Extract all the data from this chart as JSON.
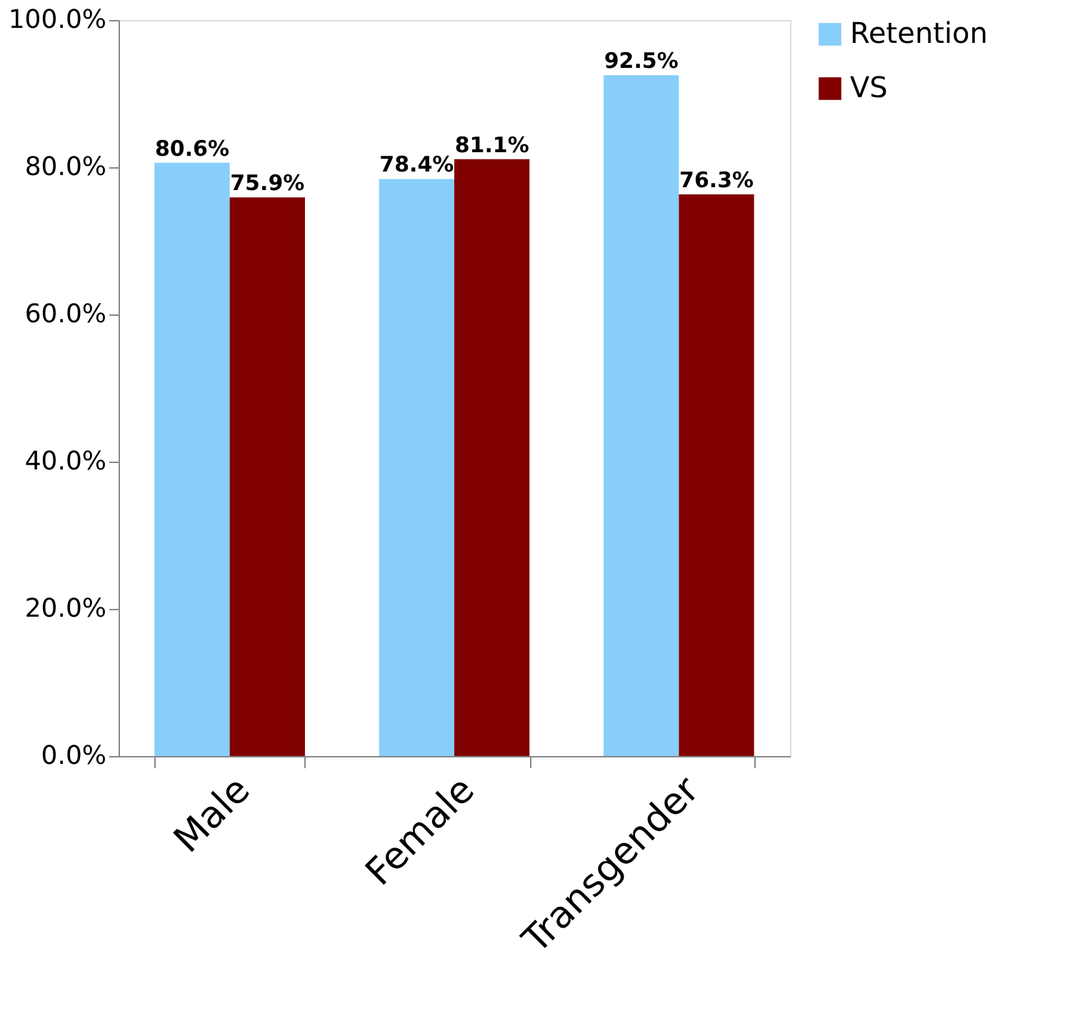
{
  "chart_data": {
    "type": "bar",
    "categories": [
      "Male",
      "Female",
      "Transgender"
    ],
    "series": [
      {
        "name": "Retention",
        "color": "#87cefa",
        "values": [
          80.6,
          78.4,
          92.5
        ],
        "value_labels": [
          "80.6%",
          "78.4%",
          "92.5%"
        ]
      },
      {
        "name": "VS",
        "color": "#800000",
        "values": [
          75.9,
          81.1,
          76.3
        ],
        "value_labels": [
          "75.9%",
          "81.1%",
          "76.3%"
        ]
      }
    ],
    "ylim": [
      0,
      100
    ],
    "yticks": [
      {
        "value": 0,
        "label": "0.0%"
      },
      {
        "value": 20,
        "label": "20.0%"
      },
      {
        "value": 40,
        "label": "40.0%"
      },
      {
        "value": 60,
        "label": "60.0%"
      },
      {
        "value": 80,
        "label": "80.0%"
      },
      {
        "value": 100,
        "label": "100.0%"
      }
    ],
    "grid": false,
    "legend": "right"
  }
}
